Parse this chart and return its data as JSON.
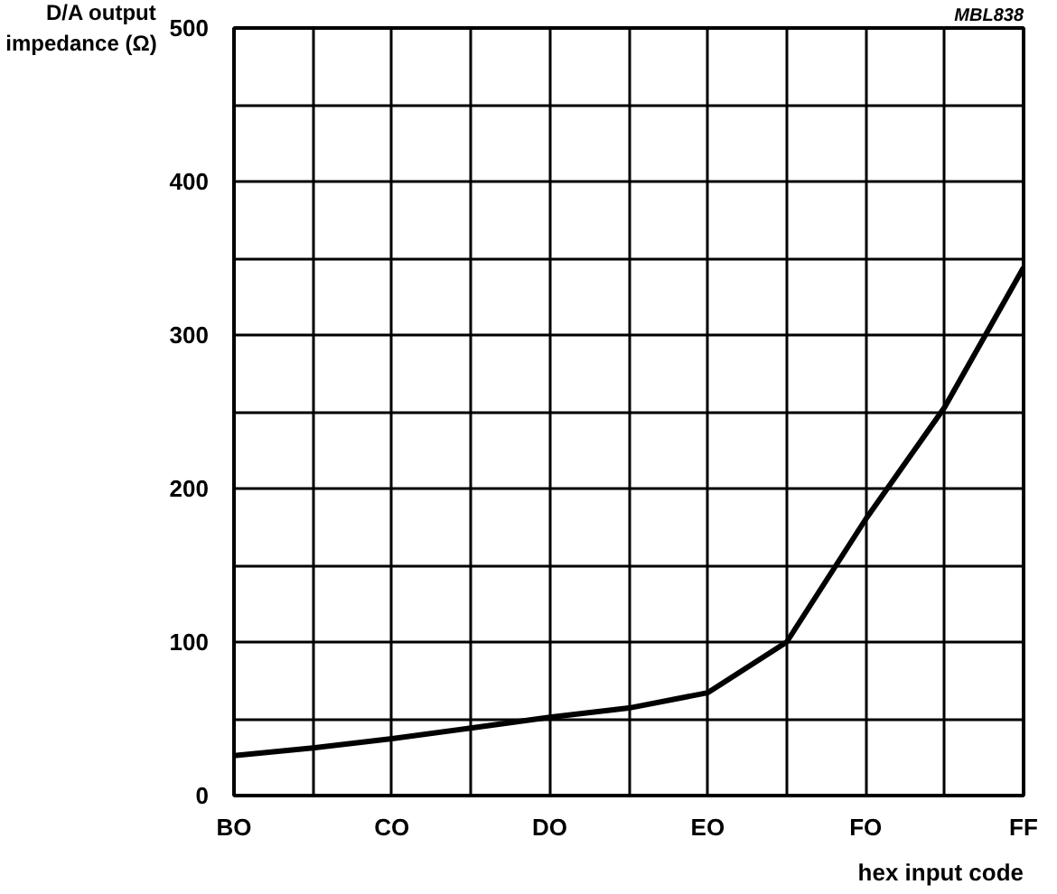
{
  "chart_data": {
    "type": "line",
    "xlabel": "hex input code",
    "ylabel": "D/A output\nimpedance (Ω)",
    "annotations": [
      "MBL838"
    ],
    "categories": [
      "BO",
      null,
      "CO",
      null,
      "DO",
      null,
      "EO",
      null,
      "FO",
      null,
      "FF"
    ],
    "series": [
      {
        "color": "#000000",
        "values": [
          26,
          31,
          37,
          44,
          51,
          57,
          67,
          100,
          180,
          253,
          344
        ]
      }
    ],
    "ylim": [
      0,
      500
    ],
    "yticks": [
      0,
      {
        "value": 50,
        "label": null
      },
      100,
      {
        "value": 150,
        "label": null
      },
      200,
      {
        "value": 250,
        "label": null
      },
      300,
      {
        "value": 350,
        "label": null
      },
      400,
      {
        "value": 450,
        "label": null
      },
      500
    ],
    "grid": true,
    "marker": "none",
    "line_style": "solid"
  }
}
